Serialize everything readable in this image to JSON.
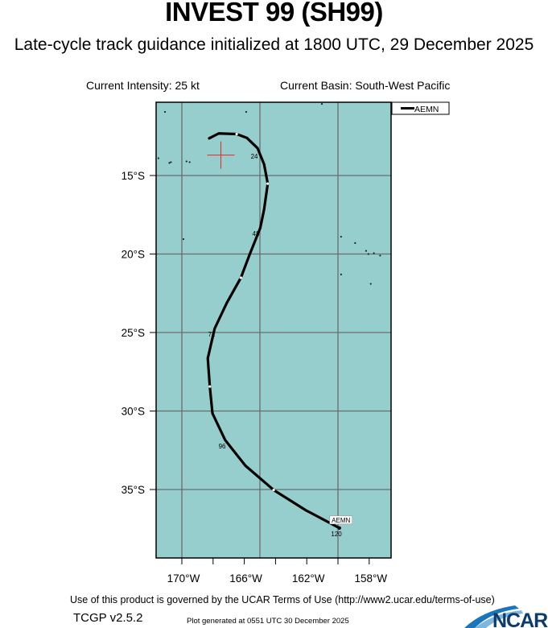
{
  "header": {
    "title": "INVEST 99 (SH99)",
    "subtitle": "Late-cycle track guidance initialized at 1800 UTC, 29 December 2025",
    "intensity": "Current Intensity: 25 kt",
    "basin": "Current Basin: South-West Pacific"
  },
  "footer": {
    "terms": "Use of this product is governed by the UCAR Terms of Use (http://www2.ucar.edu/terms-of-use)",
    "version": "TCGP v2.5.2",
    "generated": "Plot generated at 0551 UTC   30 December 2025",
    "logo_text": "NCAR"
  },
  "colors": {
    "ocean": "#96cecd",
    "grid": "#6b6b6b",
    "track": "#000000",
    "initial_marker": "#e8262a"
  },
  "chart_data": {
    "type": "map-track",
    "lon_range_W": [
      171.65,
      156.6
    ],
    "lat_range_S": [
      10.33,
      39.4
    ],
    "x_ticks_W": [
      170,
      168,
      166,
      164,
      162,
      160,
      158
    ],
    "x_tick_labels": [
      "170°W",
      "166°W",
      "162°W",
      "158°W"
    ],
    "x_labeled_ticks_W": [
      170,
      166,
      162,
      158
    ],
    "gridlines_lon_W": [
      170,
      165,
      160
    ],
    "gridlines_lat_S": [
      15,
      20,
      25,
      30,
      35
    ],
    "y_tick_labels": [
      "15°S",
      "20°S",
      "25°S",
      "30°S",
      "35°S"
    ],
    "initial_position": {
      "lon_W": 167.5,
      "lat_S": 13.7
    },
    "legend": {
      "entries": [
        "AEMN"
      ],
      "placement": "top-right outside"
    },
    "series": [
      {
        "name": "AEMN",
        "end_label": "AEMN",
        "points": [
          [
            168.25,
            12.63
          ],
          [
            167.64,
            12.32
          ],
          [
            166.49,
            12.36
          ],
          [
            165.84,
            12.6
          ],
          [
            165.15,
            13.26
          ],
          [
            164.73,
            14.29
          ],
          [
            164.5,
            15.52
          ],
          [
            164.73,
            17.15
          ],
          [
            164.98,
            18.35
          ],
          [
            165.67,
            20.06
          ],
          [
            166.22,
            21.51
          ],
          [
            167.13,
            23.13
          ],
          [
            167.9,
            24.75
          ],
          [
            168.34,
            26.64
          ],
          [
            168.21,
            28.44
          ],
          [
            168.04,
            30.15
          ],
          [
            167.22,
            31.86
          ],
          [
            165.93,
            33.48
          ],
          [
            164.12,
            35.03
          ],
          [
            162.06,
            36.32
          ],
          [
            159.91,
            37.45
          ]
        ],
        "marker_points": [
          [
            166.49,
            12.36
          ],
          [
            164.5,
            15.52
          ],
          [
            166.22,
            21.51
          ],
          [
            168.21,
            28.44
          ],
          [
            164.12,
            35.03
          ]
        ],
        "hour_labels": [
          {
            "text": "24",
            "lon_W": 165.36,
            "lat_S": 13.77
          },
          {
            "text": "48",
            "lon_W": 165.26,
            "lat_S": 18.69
          },
          {
            "text": "72",
            "lon_W": 168.09,
            "lat_S": 25.1
          },
          {
            "text": "96",
            "lon_W": 167.42,
            "lat_S": 32.23
          },
          {
            "text": "120",
            "lon_W": 160.1,
            "lat_S": 37.82
          }
        ]
      }
    ],
    "land_points": [
      [
        171.08,
        10.95
      ],
      [
        165.88,
        10.95
      ],
      [
        161.03,
        10.44
      ],
      [
        171.5,
        13.9
      ],
      [
        170.8,
        14.2
      ],
      [
        170.7,
        14.15
      ],
      [
        169.7,
        14.1
      ],
      [
        169.5,
        14.15
      ],
      [
        169.9,
        19.05
      ],
      [
        159.8,
        18.9
      ],
      [
        158.9,
        19.3
      ],
      [
        158.2,
        19.8
      ],
      [
        158.05,
        20.0
      ],
      [
        157.7,
        19.95
      ],
      [
        157.3,
        20.1
      ],
      [
        159.8,
        21.3
      ],
      [
        157.9,
        21.9
      ]
    ]
  }
}
